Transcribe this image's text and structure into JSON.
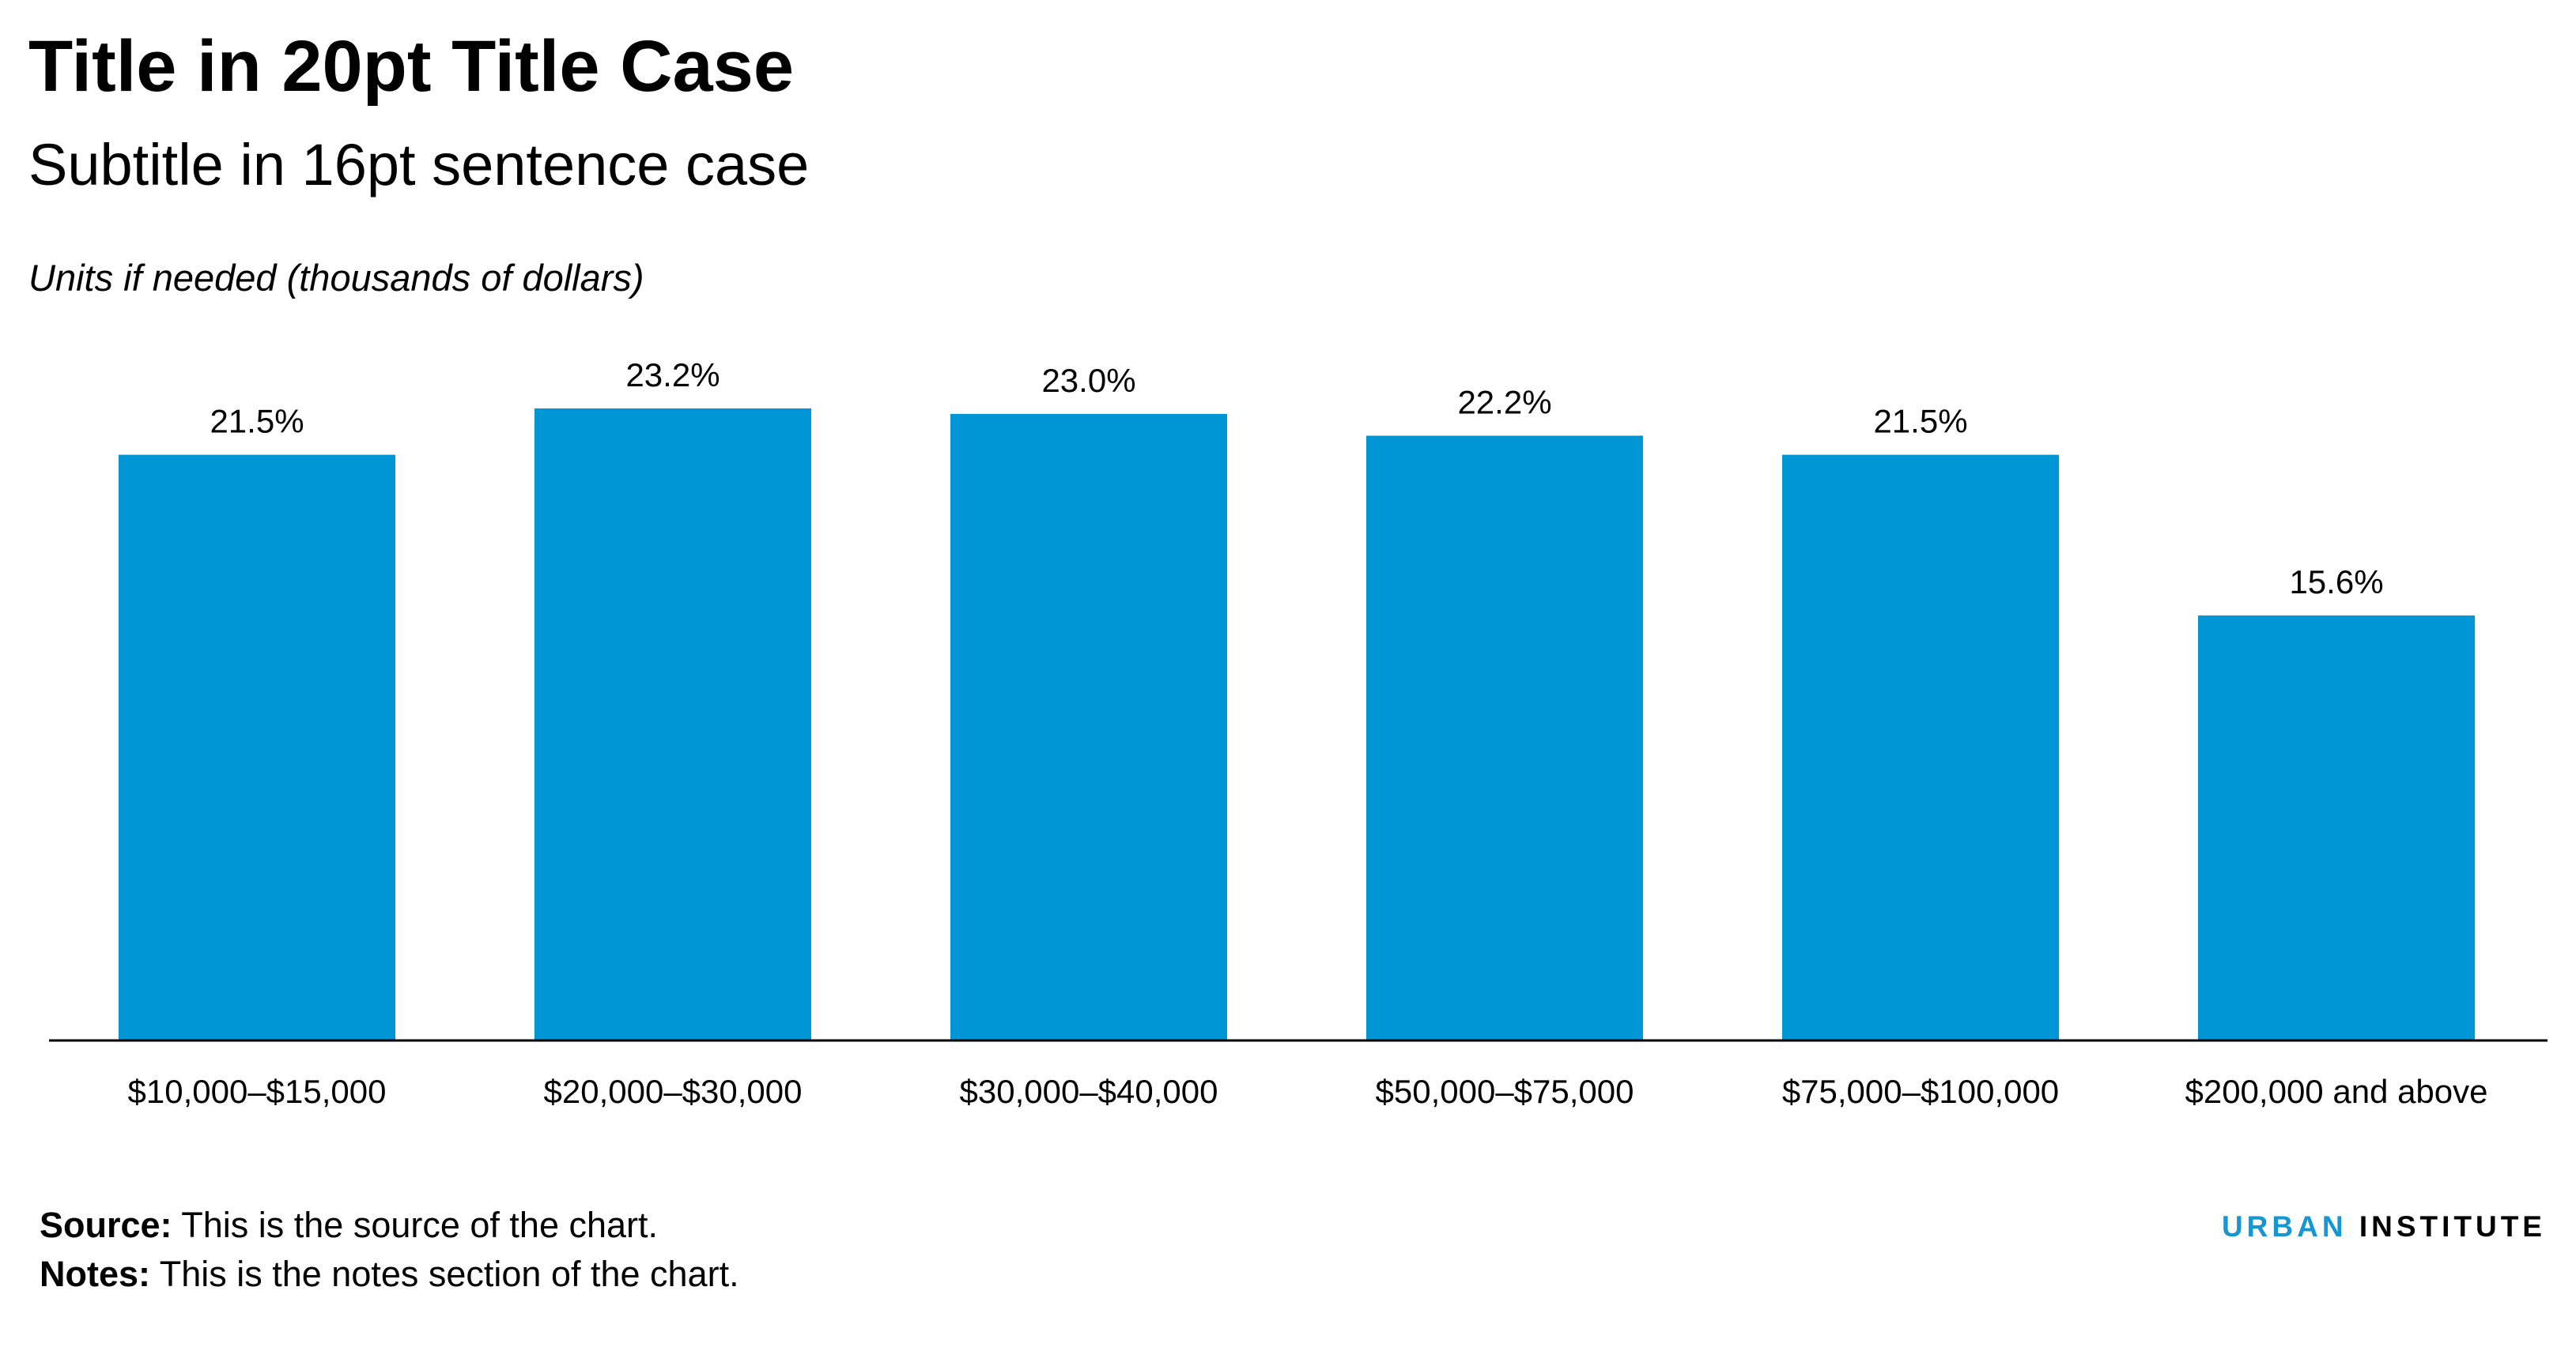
{
  "title": "Title in 20pt Title Case",
  "subtitle": "Subtitle in 16pt sentence case",
  "units": "Units if needed (thousands of dollars)",
  "footer": {
    "source_label": "Source:",
    "source_text": "This is the source of the chart.",
    "notes_label": "Notes:",
    "notes_text": "This is the notes section of the chart."
  },
  "logo": {
    "part1": "URBAN",
    "part2": "INSTITUTE",
    "part1_color": "#1696d2",
    "part2_color": "#000000"
  },
  "chart_data": {
    "type": "bar",
    "categories": [
      "$10,000–$15,000",
      "$20,000–$30,000",
      "$30,000–$40,000",
      "$50,000–$75,000",
      "$75,000–$100,000",
      "$200,000 and above"
    ],
    "values": [
      21.5,
      23.2,
      23.0,
      22.2,
      21.5,
      15.6
    ],
    "value_labels": [
      "21.5%",
      "23.2%",
      "23.0%",
      "22.2%",
      "21.5%",
      "15.6%"
    ],
    "ylim": [
      0,
      23.2
    ],
    "grid": false,
    "bar_color": "#0096d6"
  }
}
